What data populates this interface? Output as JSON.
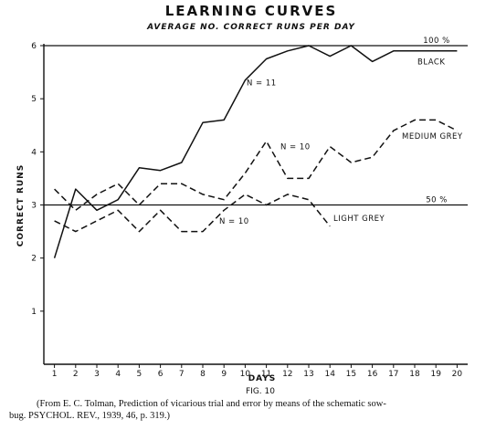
{
  "chart_data": {
    "type": "line",
    "title": "LEARNING CURVES",
    "subtitle": "AVERAGE NO. CORRECT RUNS PER DAY",
    "xlabel": "DAYS",
    "ylabel": "CORRECT RUNS",
    "xlim": [
      0.5,
      20.5
    ],
    "ylim": [
      0,
      6
    ],
    "x_ticks": [
      "1",
      "2",
      "3",
      "4",
      "5",
      "6",
      "7",
      "8",
      "9",
      "10",
      "11",
      "12",
      "13",
      "14",
      "15",
      "16",
      "17",
      "18",
      "19",
      "20"
    ],
    "y_ticks": [
      "1",
      "2",
      "3",
      "4",
      "5",
      "6"
    ],
    "x": [
      1,
      2,
      3,
      4,
      5,
      6,
      7,
      8,
      9,
      10,
      11,
      12,
      13,
      14,
      15,
      16,
      17,
      18,
      19,
      20
    ],
    "series": [
      {
        "name": "BLACK",
        "style": "solid",
        "values": [
          2.0,
          3.3,
          2.9,
          3.1,
          3.7,
          3.65,
          3.8,
          4.55,
          4.6,
          5.35,
          5.75,
          5.9,
          6.0,
          5.8,
          6.0,
          5.7,
          5.9,
          5.9,
          5.9,
          5.9
        ]
      },
      {
        "name": "MEDIUM GREY",
        "style": "dashed",
        "values": [
          3.3,
          2.9,
          3.2,
          3.4,
          3.0,
          3.4,
          3.4,
          3.2,
          3.1,
          3.6,
          4.2,
          3.5,
          3.5,
          4.1,
          3.8,
          3.9,
          4.4,
          4.6,
          4.6,
          4.4
        ]
      },
      {
        "name": "LIGHT GREY",
        "style": "dashed",
        "values": [
          2.7,
          2.5,
          2.7,
          2.9,
          2.5,
          2.9,
          2.5,
          2.5,
          2.9,
          3.2,
          3.0,
          3.2,
          3.1,
          2.6,
          null,
          null,
          null,
          null,
          null,
          null
        ]
      }
    ],
    "reference_lines": [
      {
        "label": "100 %",
        "y": 6
      },
      {
        "label": "50 %",
        "y": 3
      }
    ],
    "annotations": [
      {
        "text": "N = 11",
        "series": "BLACK"
      },
      {
        "text": "N = 10",
        "series": "MEDIUM GREY"
      },
      {
        "text": "N = 10",
        "series": "LIGHT GREY"
      }
    ],
    "grid": false,
    "legend": "none"
  },
  "figure_label": "FIG. 10",
  "caption_line1": "(From E. C. Tolman, Prediction of vicarious trial and error by means of the schematic sow-",
  "caption_line2": "bug.  PSYCHOL. REV., 1939, 46, p. 319.)"
}
